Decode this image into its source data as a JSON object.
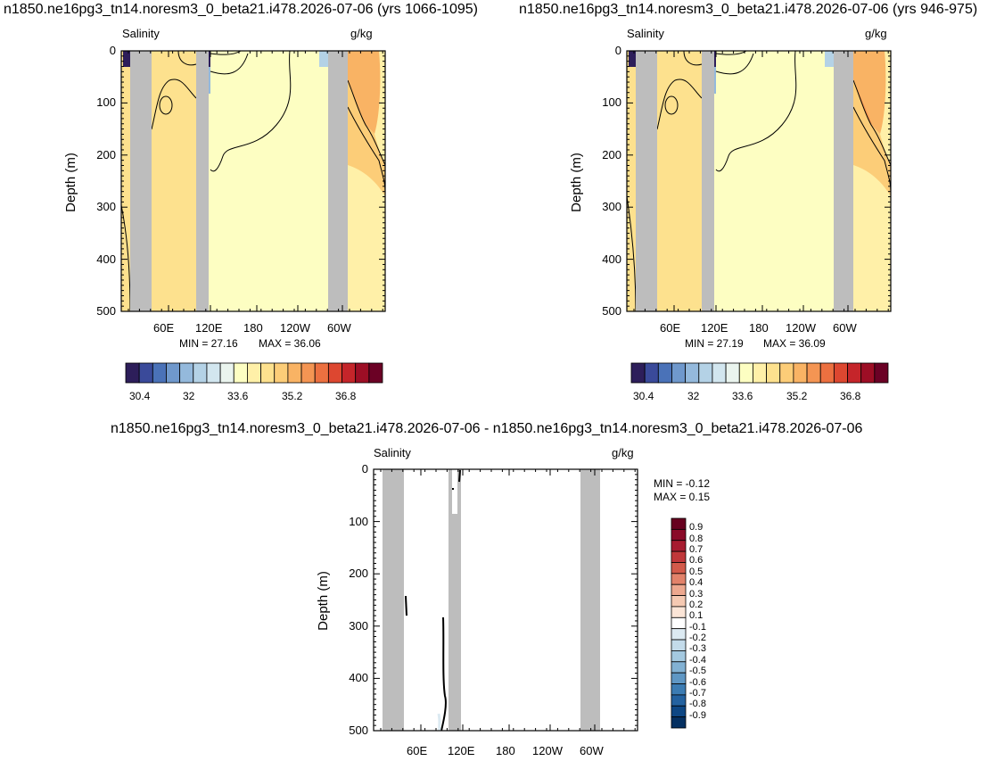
{
  "titles": {
    "panel1": "n1850.ne16pg3_tn14.noresm3_0_beta21.i478.2026-07-06 (yrs 1066-1095)",
    "panel2": "n1850.ne16pg3_tn14.noresm3_0_beta21.i478.2026-07-06 (yrs 946-975)",
    "panel3": "n1850.ne16pg3_tn14.noresm3_0_beta21.i478.2026-07-06 - n1850.ne16pg3_tn14.noresm3_0_beta21.i478.2026-07-06"
  },
  "chart_data": [
    {
      "type": "heatmap",
      "variable_label": "Salinity",
      "units_label": "g/kg",
      "ylabel": "Depth (m)",
      "x_tick_labels": [
        "60E",
        "120E",
        "180",
        "120W",
        "60W"
      ],
      "y_tick_labels": [
        "0",
        "100",
        "200",
        "300",
        "400",
        "500"
      ],
      "ylim": [
        500,
        0
      ],
      "min_label": "MIN =  27.16",
      "max_label": "MAX =  36.06",
      "colorbar_labels": [
        "30.4",
        "32",
        "33.6",
        "35.2",
        "36.8"
      ],
      "colorbar_orientation": "horizontal"
    },
    {
      "type": "heatmap",
      "variable_label": "Salinity",
      "units_label": "g/kg",
      "ylabel": "Depth (m)",
      "x_tick_labels": [
        "60E",
        "120E",
        "180",
        "120W",
        "60W"
      ],
      "y_tick_labels": [
        "0",
        "100",
        "200",
        "300",
        "400",
        "500"
      ],
      "ylim": [
        500,
        0
      ],
      "min_label": "MIN =  27.19",
      "max_label": "MAX =  36.09",
      "colorbar_labels": [
        "30.4",
        "32",
        "33.6",
        "35.2",
        "36.8"
      ],
      "colorbar_orientation": "horizontal"
    },
    {
      "type": "heatmap",
      "variable_label": "Salinity",
      "units_label": "g/kg",
      "ylabel": "Depth (m)",
      "x_tick_labels": [
        "60E",
        "120E",
        "180",
        "120W",
        "60W"
      ],
      "y_tick_labels": [
        "0",
        "100",
        "200",
        "300",
        "400",
        "500"
      ],
      "ylim": [
        500,
        0
      ],
      "min_label": "MIN =  -0.12",
      "max_label": "MAX =   0.15",
      "colorbar_labels": [
        "0.9",
        "0.8",
        "0.7",
        "0.6",
        "0.5",
        "0.4",
        "0.3",
        "0.2",
        "0.1",
        "-0.1",
        "-0.2",
        "-0.3",
        "-0.4",
        "-0.5",
        "-0.6",
        "-0.7",
        "-0.8",
        "-0.9"
      ],
      "colorbar_orientation": "vertical"
    }
  ],
  "colors": {
    "abs_palette": [
      "#2d1e5a",
      "#3a4a9a",
      "#4a72b8",
      "#6f98cc",
      "#94b9dc",
      "#b4d2e6",
      "#d2e6ef",
      "#eaf4ee",
      "#fdfec2",
      "#fff0a8",
      "#fde18e",
      "#fccd78",
      "#f9b364",
      "#f49553",
      "#ec7040",
      "#dd4730",
      "#c5252a",
      "#9d0e25",
      "#6b0125"
    ],
    "diff_palette": [
      "#67001f",
      "#8a0a28",
      "#a71c30",
      "#c0373a",
      "#d35a4a",
      "#e2826a",
      "#eda88f",
      "#f5c9b2",
      "#fbe5d7",
      "#ffffff",
      "#dceaf2",
      "#c3dbea",
      "#a4c9e0",
      "#82b1d3",
      "#5f97c4",
      "#3c7cb3",
      "#2462a0",
      "#0e4784",
      "#053061"
    ],
    "land_gray": "#bdbdbd"
  }
}
